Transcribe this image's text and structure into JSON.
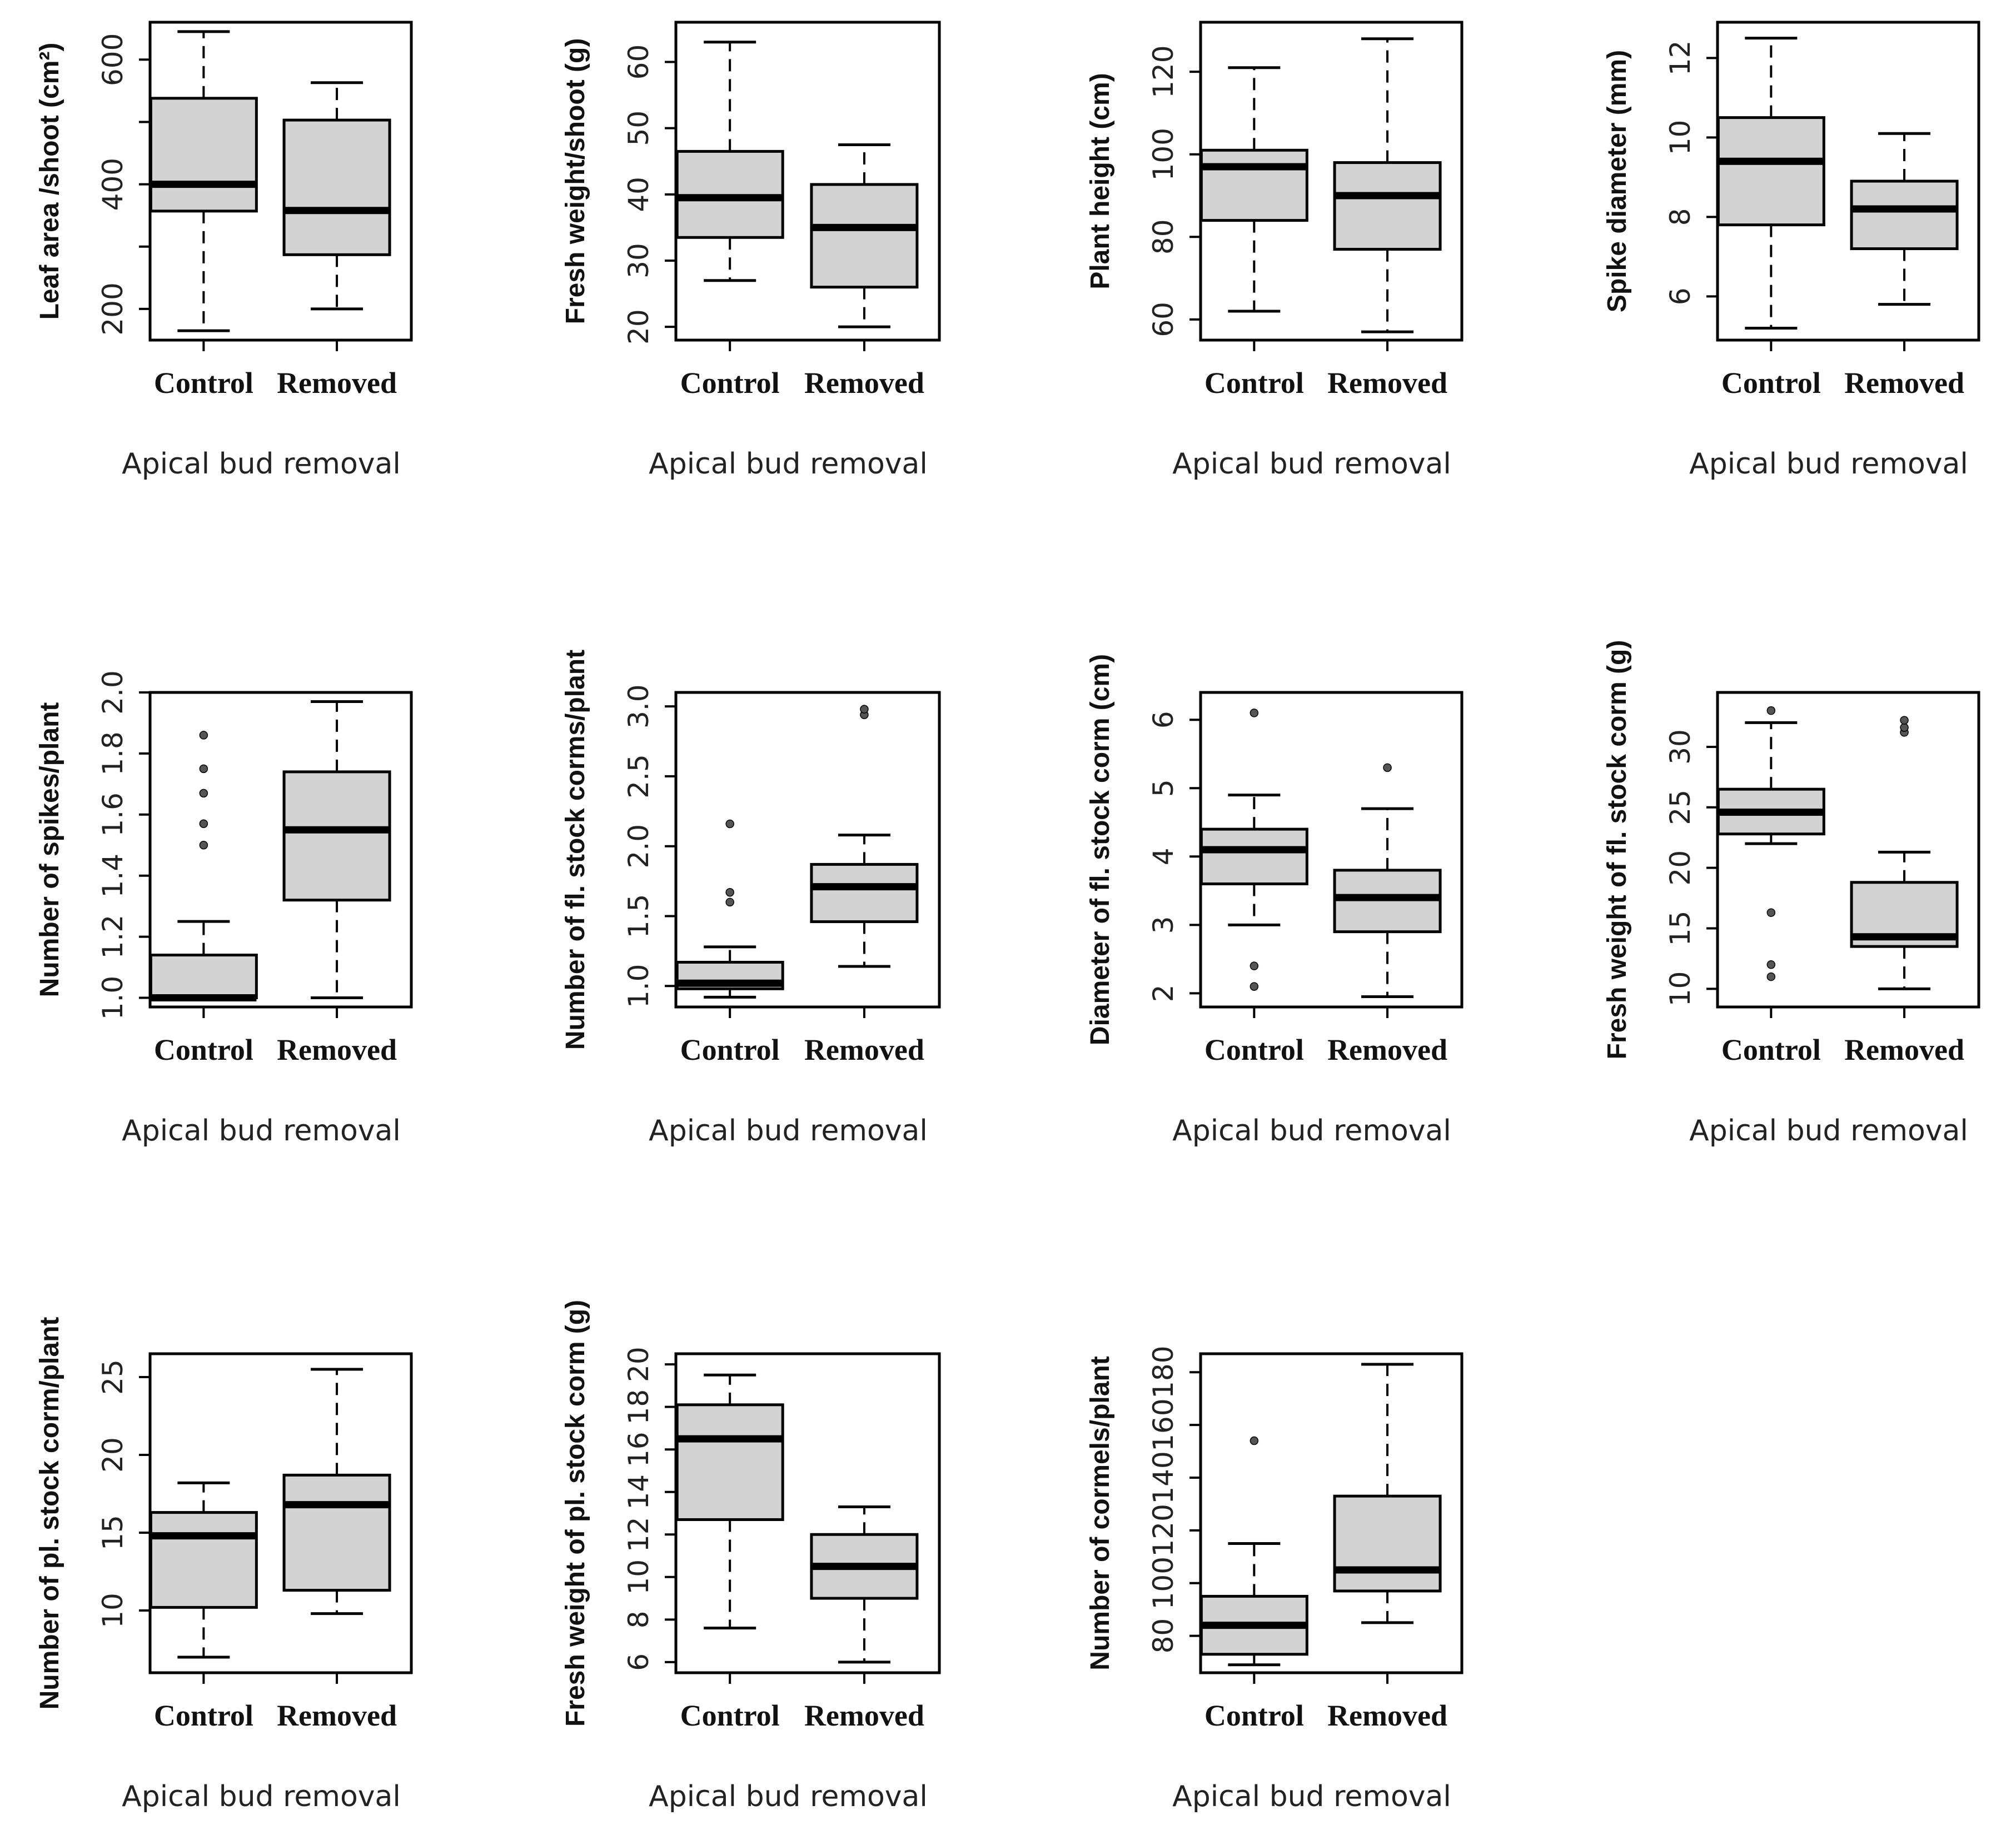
{
  "figure": {
    "panel_count": 11,
    "colors": {
      "box_fill": "#d3d3d3",
      "stroke": "#000000",
      "background": "#ffffff"
    }
  },
  "chart_data": [
    {
      "type": "box",
      "ylabel": "Leaf area /shoot (cm²)",
      "xlabel": "Apical bud removal",
      "ylim": [
        150,
        660
      ],
      "ticks": [
        200,
        300,
        400,
        500,
        600
      ],
      "tick_labels": [
        "200",
        "",
        "400",
        "",
        "600"
      ],
      "categories": [
        "Control",
        "Removed"
      ],
      "boxes": [
        {
          "min": 165,
          "q1": 357,
          "median": 400,
          "q3": 538,
          "max": 645,
          "outliers": []
        },
        {
          "min": 200,
          "q1": 287,
          "median": 358,
          "q3": 503,
          "max": 563,
          "outliers": []
        }
      ]
    },
    {
      "type": "box",
      "ylabel": "Fresh weight/shoot (g)",
      "xlabel": "Apical bud removal",
      "ylim": [
        18,
        66
      ],
      "ticks": [
        20,
        30,
        40,
        50,
        60
      ],
      "tick_labels": [
        "20",
        "30",
        "40",
        "50",
        "60"
      ],
      "categories": [
        "Control",
        "Removed"
      ],
      "boxes": [
        {
          "min": 27,
          "q1": 33.5,
          "median": 39.5,
          "q3": 46.5,
          "max": 63,
          "outliers": []
        },
        {
          "min": 20,
          "q1": 26,
          "median": 35,
          "q3": 41.5,
          "max": 47.5,
          "outliers": []
        }
      ]
    },
    {
      "type": "box",
      "ylabel": "Plant height (cm)",
      "xlabel": "Apical bud removal",
      "ylim": [
        55,
        132
      ],
      "ticks": [
        60,
        80,
        100,
        120
      ],
      "tick_labels": [
        "60",
        "80",
        "100",
        "120"
      ],
      "categories": [
        "Control",
        "Removed"
      ],
      "boxes": [
        {
          "min": 62,
          "q1": 84,
          "median": 97,
          "q3": 101,
          "max": 121,
          "outliers": []
        },
        {
          "min": 57,
          "q1": 77,
          "median": 90,
          "q3": 98,
          "max": 128,
          "outliers": []
        }
      ]
    },
    {
      "type": "box",
      "ylabel": "Spike diameter (mm)",
      "xlabel": "Apical bud removal",
      "ylim": [
        4.9,
        12.9
      ],
      "ticks": [
        6,
        8,
        10,
        12
      ],
      "tick_labels": [
        "6",
        "8",
        "10",
        "12"
      ],
      "categories": [
        "Control",
        "Removed"
      ],
      "boxes": [
        {
          "min": 5.2,
          "q1": 7.8,
          "median": 9.4,
          "q3": 10.5,
          "max": 12.5,
          "outliers": []
        },
        {
          "min": 5.8,
          "q1": 7.2,
          "median": 8.2,
          "q3": 8.9,
          "max": 10.1,
          "outliers": []
        }
      ]
    },
    {
      "type": "box",
      "ylabel": "Number of spikes/plant",
      "xlabel": "Apical bud removal",
      "ylim": [
        0.97,
        2.0
      ],
      "ticks": [
        1.0,
        1.2,
        1.4,
        1.6,
        1.8,
        2.0
      ],
      "tick_labels": [
        "1.0",
        "1.2",
        "1.4",
        "1.6",
        "1.8",
        "2.0"
      ],
      "categories": [
        "Control",
        "Removed"
      ],
      "boxes": [
        {
          "min": 1.0,
          "q1": 1.0,
          "median": 1.0,
          "q3": 1.14,
          "max": 1.25,
          "outliers": [
            1.5,
            1.57,
            1.67,
            1.75,
            1.86
          ]
        },
        {
          "min": 1.0,
          "q1": 1.32,
          "median": 1.55,
          "q3": 1.74,
          "max": 1.97,
          "outliers": []
        }
      ]
    },
    {
      "type": "box",
      "ylabel": "Number of fl. stock corms/plant",
      "xlabel": "Apical bud removal",
      "ylim": [
        0.85,
        3.1
      ],
      "ticks": [
        1.0,
        1.5,
        2.0,
        2.5,
        3.0
      ],
      "tick_labels": [
        "1.0",
        "1.5",
        "2.0",
        "2.5",
        "3.0"
      ],
      "categories": [
        "Control",
        "Removed"
      ],
      "boxes": [
        {
          "min": 0.92,
          "q1": 0.98,
          "median": 1.02,
          "q3": 1.17,
          "max": 1.28,
          "outliers": [
            1.6,
            1.67,
            2.16
          ]
        },
        {
          "min": 1.14,
          "q1": 1.46,
          "median": 1.71,
          "q3": 1.87,
          "max": 2.08,
          "outliers": [
            2.94,
            2.98
          ]
        }
      ]
    },
    {
      "type": "box",
      "ylabel": "Diameter of fl. stock corm (cm)",
      "xlabel": "Apical bud removal",
      "ylim": [
        1.8,
        6.4
      ],
      "ticks": [
        2,
        3,
        4,
        5,
        6
      ],
      "tick_labels": [
        "2",
        "3",
        "4",
        "5",
        "6"
      ],
      "categories": [
        "Control",
        "Removed"
      ],
      "boxes": [
        {
          "min": 3.0,
          "q1": 3.6,
          "median": 4.1,
          "q3": 4.4,
          "max": 4.9,
          "outliers": [
            2.1,
            2.4,
            6.1
          ]
        },
        {
          "min": 1.95,
          "q1": 2.9,
          "median": 3.4,
          "q3": 3.8,
          "max": 4.7,
          "outliers": [
            5.3
          ]
        }
      ]
    },
    {
      "type": "box",
      "ylabel": "Fresh weight of fl. stock corm (g)",
      "xlabel": "Apical bud removal",
      "ylim": [
        8.5,
        34.5
      ],
      "ticks": [
        10,
        15,
        20,
        25,
        30
      ],
      "tick_labels": [
        "10",
        "15",
        "20",
        "25",
        "30"
      ],
      "categories": [
        "Control",
        "Removed"
      ],
      "boxes": [
        {
          "min": 22,
          "q1": 22.8,
          "median": 24.6,
          "q3": 26.5,
          "max": 32,
          "outliers": [
            11,
            12,
            16.3,
            33
          ]
        },
        {
          "min": 10,
          "q1": 13.5,
          "median": 14.3,
          "q3": 18.8,
          "max": 21.3,
          "outliers": [
            31.2,
            31.6,
            32.2
          ]
        }
      ]
    },
    {
      "type": "box",
      "ylabel": "Number of pl. stock corm/plant",
      "xlabel": "Apical bud removal",
      "ylim": [
        6,
        26.5
      ],
      "ticks": [
        10,
        15,
        20,
        25
      ],
      "tick_labels": [
        "10",
        "15",
        "20",
        "25"
      ],
      "categories": [
        "Control",
        "Removed"
      ],
      "boxes": [
        {
          "min": 7,
          "q1": 10.2,
          "median": 14.8,
          "q3": 16.3,
          "max": 18.2,
          "outliers": []
        },
        {
          "min": 9.8,
          "q1": 11.3,
          "median": 16.8,
          "q3": 18.7,
          "max": 25.5,
          "outliers": []
        }
      ]
    },
    {
      "type": "box",
      "ylabel": "Fresh weight of pl. stock corm (g)",
      "xlabel": "Apical bud removal",
      "ylim": [
        5.5,
        20.5
      ],
      "ticks": [
        6,
        8,
        10,
        12,
        14,
        16,
        18,
        20
      ],
      "tick_labels": [
        "6",
        "8",
        "10",
        "12",
        "14",
        "16",
        "18",
        "20"
      ],
      "categories": [
        "Control",
        "Removed"
      ],
      "boxes": [
        {
          "min": 7.6,
          "q1": 12.7,
          "median": 16.5,
          "q3": 18.1,
          "max": 19.5,
          "outliers": []
        },
        {
          "min": 6,
          "q1": 9,
          "median": 10.5,
          "q3": 12,
          "max": 13.3,
          "outliers": []
        }
      ]
    },
    {
      "type": "box",
      "ylabel": "Number of cormels/plant",
      "xlabel": "Apical bud removal",
      "ylim": [
        66,
        187
      ],
      "ticks": [
        80,
        100,
        120,
        140,
        160,
        180
      ],
      "tick_labels": [
        "80",
        "100",
        "120",
        "140",
        "160",
        "180"
      ],
      "categories": [
        "Control",
        "Removed"
      ],
      "boxes": [
        {
          "min": 69,
          "q1": 73,
          "median": 84,
          "q3": 95,
          "max": 115,
          "outliers": [
            154
          ]
        },
        {
          "min": 85,
          "q1": 97,
          "median": 105,
          "q3": 133,
          "max": 183,
          "outliers": []
        }
      ]
    }
  ]
}
